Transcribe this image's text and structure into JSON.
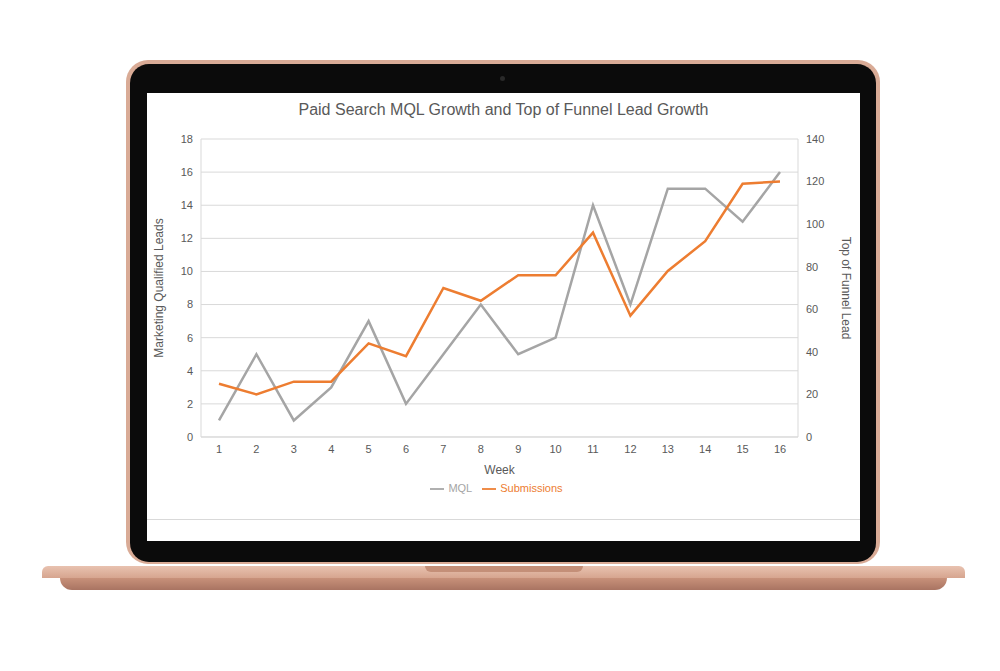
{
  "chart_data": {
    "type": "line",
    "title": "Paid Search MQL Growth and Top of Funnel Lead Growth",
    "x_label": "Week",
    "y_label": "Marketing Qualified Leads",
    "y2_label": "Top of Funnel Lead",
    "categories": [
      "1",
      "2",
      "3",
      "4",
      "5",
      "6",
      "7",
      "8",
      "9",
      "10",
      "11",
      "12",
      "13",
      "14",
      "15",
      "16"
    ],
    "series": [
      {
        "name": "MQL",
        "color": "#a5a5a5",
        "values": [
          1,
          5,
          1,
          3,
          7,
          2,
          5,
          8,
          5,
          6,
          14,
          8,
          15,
          15,
          13,
          16
        ]
      },
      {
        "name": "Submissions",
        "color": "#ed7d31",
        "axis": "y2",
        "values": [
          25,
          20,
          26,
          26,
          44,
          38,
          70,
          64,
          76,
          76,
          96,
          57,
          78,
          92,
          119,
          120
        ]
      }
    ],
    "ylim": [
      0,
      18
    ],
    "yticks": [
      0,
      2,
      4,
      6,
      8,
      10,
      12,
      14,
      16,
      18
    ],
    "y2lim": [
      0,
      140
    ],
    "y2ticks": [
      0,
      20,
      40,
      60,
      80,
      100,
      120,
      140
    ],
    "grid": true,
    "legend": "bottom"
  }
}
